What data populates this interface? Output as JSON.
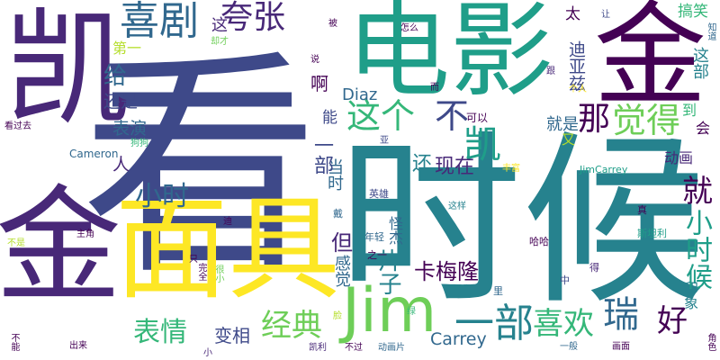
{
  "words": {
    "kan": "看",
    "shi_hou": "时候",
    "dian_ying": "电影",
    "mian_ju": "面具",
    "jin": "金",
    "kai": "凯",
    "Jim": "Jim",
    "xi_ju": "喜剧",
    "kua_zhang": "夸张",
    "zhe_ge": "这个",
    "bu": "不",
    "jue_de": "觉得",
    "na": "那",
    "yi_bu": "一部",
    "xi_huan": "喜欢",
    "rui": "瑞",
    "hao": "好",
    "jing_dian": "经典",
    "biao_qing": "表情",
    "bian_xiang": "变相",
    "xiao_shi_hou": "小时候",
    "jiu": "就",
    "xiao_shi": "小时",
    "Carrey": "Carrey",
    "Diaz": "Diaz",
    "ka_mei_long": "卡梅隆",
    "pian_zi": "片子",
    "dan": "但",
    "gan_jue": "感觉",
    "xian_zai": "现在",
    "hai": "还",
    "dang_shi": "当时",
    "ren": "人",
    "biao_yan": "表演",
    "hai_shi": "还是",
    "gei": "给",
    "a": "啊",
    "zhe": "这",
    "di_yi": "第一",
    "di_ya_zi": "迪亚兹",
    "zhe_bu": "这部",
    "gao_xiao": "搞笑",
    "tai": "太",
    "dong_hua": "动画",
    "hui": "会",
    "jiu_shi": "就是",
    "you": "又",
    "dao": "到",
    "yin_xiang": "印象",
    "guai_jie": "怪杰",
    "neng": "能",
    "ke_yi": "可以",
    "Cameron": "Cameron",
    "gou_gou": "狗狗",
    "JimCarrey": "JimCarrey",
    "ying_xiong": "英雄",
    "zhe_yang": "这样",
    "feng_fu": "丰富",
    "zhen": "真",
    "si_tan_li": "斯坦利",
    "ha_ha": "哈哈",
    "nian_qing": "年轻",
    "dai": "戴",
    "zhi_yi": "之一",
    "li": "里",
    "zhong": "中",
    "de": "得",
    "gen": "跟",
    "ge_ren": "个人",
    "er": "而",
    "rang": "让",
    "zhi_dao": "知道",
    "zen_me": "怎么",
    "bei": "被",
    "que_cai": "却才",
    "shuo": "说",
    "kan_guo_qu": "看过去",
    "ya": "亚",
    "di": "迪",
    "zhu_jiao": "主角",
    "bu_shi": "不是",
    "zhi": "只",
    "wan_quan": "完全",
    "hen_xiao": "很小",
    "lian": "脸",
    "lv": "绿",
    "kai_li": "凯利",
    "bu_guo": "不过",
    "dong_hua_pian": "动画片",
    "yi_ban": "一般",
    "hua_mian": "画面",
    "jiao_se": "角色",
    "bu_neng": "不能",
    "chu_lai": "出来",
    "xiao": "小"
  },
  "colors": {
    "dark_purple": "#440154",
    "indigo": "#482878",
    "slate_blue": "#3e4989",
    "steel_blue": "#31688e",
    "teal": "#26828e",
    "cyan_green": "#1f9e89",
    "green": "#35b779",
    "lime": "#6ece58",
    "yellow_green": "#b5de2b",
    "yellow": "#fde725"
  }
}
